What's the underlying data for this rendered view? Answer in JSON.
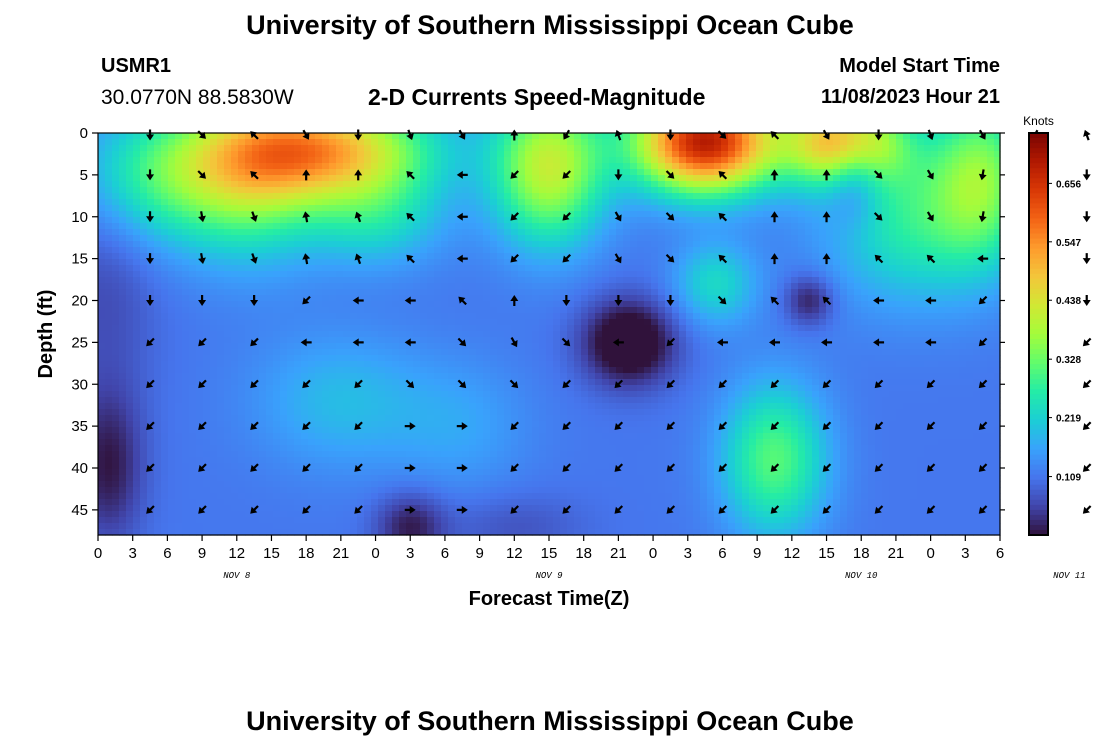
{
  "header": {
    "title": "University of Southern Mississippi Ocean Cube",
    "station_id": "USMR1",
    "station_coords": "30.0770N  88.5830W",
    "chart_title": "2-D Currents Speed-Magnitude",
    "model_start_label": "Model Start Time",
    "model_start_value": "11/08/2023 Hour 21"
  },
  "footer": {
    "title": "University of Southern Mississippi Ocean Cube"
  },
  "chart_data": {
    "type": "heatmap",
    "title": "2-D Currents Speed-Magnitude",
    "xlabel": "Forecast Time(Z)",
    "ylabel": "Depth (ft)",
    "x_tick_labels": [
      "0",
      "3",
      "6",
      "9",
      "12",
      "15",
      "18",
      "21",
      "0",
      "3",
      "6",
      "9",
      "12",
      "15",
      "18",
      "21",
      "0",
      "3",
      "6",
      "9",
      "12",
      "15",
      "18",
      "21",
      "0",
      "3",
      "6"
    ],
    "x_date_labels": [
      {
        "label": "NOV 8",
        "tick_index": 4.5
      },
      {
        "label": "NOV 9",
        "tick_index": 13.5
      },
      {
        "label": "NOV 10",
        "tick_index": 22.5
      },
      {
        "label": "NOV 11",
        "tick_index": 28.5
      }
    ],
    "y_ticks": [
      0,
      5,
      10,
      15,
      20,
      25,
      30,
      35,
      40,
      45
    ],
    "ylim": [
      48,
      0
    ],
    "colorbar": {
      "label": "Knots",
      "tick_labels": [
        "0.656",
        "0.547",
        "0.438",
        "0.328",
        "0.219",
        "0.109"
      ],
      "tick_values": [
        0.656,
        0.547,
        0.438,
        0.328,
        0.219,
        0.109
      ],
      "range": [
        0,
        0.75
      ],
      "colors": [
        "#30123b",
        "#4145ab",
        "#4675ed",
        "#39a2fc",
        "#1bcfd4",
        "#24eca6",
        "#61fc6c",
        "#a4fc3b",
        "#d1e834",
        "#f3c63a",
        "#fe9b2d",
        "#f36315",
        "#d93806",
        "#b11901",
        "#7a0402"
      ]
    },
    "speed_hotspots": [
      {
        "x": 17.5,
        "y": 1,
        "amp": 0.58,
        "sx": 2.0,
        "sy": 6
      },
      {
        "x": 21.5,
        "y": 1,
        "amp": 0.4,
        "sx": 1.6,
        "sy": 5
      },
      {
        "x": 13.0,
        "y": 4,
        "amp": 0.3,
        "sx": 1.6,
        "sy": 9
      },
      {
        "x": 6.5,
        "y": 2,
        "amp": 0.38,
        "sx": 3.0,
        "sy": 6
      },
      {
        "x": 4.5,
        "y": 5,
        "amp": 0.18,
        "sx": 2.0,
        "sy": 10
      },
      {
        "x": 2.0,
        "y": 5,
        "amp": 0.18,
        "sx": 2.5,
        "sy": 8
      },
      {
        "x": 25.5,
        "y": 5,
        "amp": 0.2,
        "sx": 1.4,
        "sy": 10
      },
      {
        "x": 23.5,
        "y": 10,
        "amp": 0.16,
        "sx": 2.5,
        "sy": 10
      },
      {
        "x": 8.0,
        "y": 10,
        "amp": 0.12,
        "sx": 2.0,
        "sy": 6
      },
      {
        "x": 17.8,
        "y": 18,
        "amp": 0.12,
        "sx": 1.2,
        "sy": 5
      },
      {
        "x": 19.5,
        "y": 39,
        "amp": 0.2,
        "sx": 1.5,
        "sy": 9
      },
      {
        "x": 7.0,
        "y": 32,
        "amp": 0.08,
        "sx": 2.5,
        "sy": 8
      },
      {
        "x": 10.5,
        "y": 35,
        "amp": 0.05,
        "sx": 2.0,
        "sy": 8
      },
      {
        "x": 0.2,
        "y": 18,
        "amp": -0.05,
        "sx": 1.5,
        "sy": 15
      },
      {
        "x": 15.3,
        "y": 25,
        "amp": -0.17,
        "sx": 1.3,
        "sy": 5
      },
      {
        "x": 21.8,
        "y": 4,
        "amp": -0.13,
        "sx": 0.8,
        "sy": 6
      },
      {
        "x": 20.5,
        "y": 20,
        "amp": -0.1,
        "sx": 0.7,
        "sy": 3
      },
      {
        "x": 28.8,
        "y": 38,
        "amp": -0.15,
        "sx": 0.9,
        "sy": 9
      },
      {
        "x": 0.3,
        "y": 40,
        "amp": -0.1,
        "sx": 1.0,
        "sy": 9
      },
      {
        "x": 9.0,
        "y": 47,
        "amp": -0.1,
        "sx": 1.0,
        "sy": 4
      },
      {
        "x": 12.0,
        "y": 47,
        "amp": -0.04,
        "sx": 2.0,
        "sy": 4
      }
    ],
    "speed_background": 0.11,
    "vectors": {
      "x_positions": [
        1.5,
        3,
        4.5,
        6,
        7.5,
        9,
        10.5,
        12,
        13.5,
        15,
        16.5,
        18,
        19.5,
        21,
        22.5,
        24,
        25.5,
        27,
        28.5,
        29
      ],
      "depths": [
        0,
        5,
        10,
        15,
        20,
        25,
        30,
        35,
        40,
        45
      ],
      "angle_rows_deg": [
        [
          270,
          315,
          135,
          300,
          270,
          290,
          300,
          90,
          240,
          110,
          270,
          315,
          135,
          300,
          270,
          290,
          300,
          240,
          110,
          240
        ],
        [
          270,
          315,
          135,
          90,
          90,
          135,
          180,
          225,
          225,
          270,
          315,
          135,
          90,
          90,
          315,
          300,
          260,
          270,
          270,
          240
        ],
        [
          270,
          280,
          290,
          100,
          110,
          135,
          180,
          225,
          225,
          300,
          315,
          135,
          90,
          90,
          315,
          300,
          260,
          270,
          270,
          240
        ],
        [
          270,
          280,
          290,
          100,
          110,
          135,
          180,
          225,
          225,
          300,
          315,
          135,
          90,
          90,
          135,
          135,
          180,
          225,
          270,
          270
        ],
        [
          270,
          270,
          270,
          225,
          180,
          180,
          135,
          90,
          270,
          270,
          270,
          315,
          135,
          135,
          180,
          180,
          225,
          225,
          270,
          270
        ],
        [
          225,
          225,
          225,
          180,
          180,
          180,
          315,
          300,
          315,
          180,
          225,
          180,
          180,
          180,
          180,
          180,
          225,
          225,
          225,
          225
        ],
        [
          225,
          225,
          225,
          225,
          225,
          315,
          315,
          315,
          225,
          225,
          225,
          225,
          225,
          225,
          225,
          225,
          225,
          225,
          225,
          225
        ],
        [
          225,
          225,
          225,
          225,
          225,
          0,
          0,
          225,
          225,
          225,
          225,
          225,
          225,
          225,
          225,
          225,
          225,
          225,
          225,
          225
        ],
        [
          225,
          225,
          225,
          225,
          225,
          0,
          0,
          225,
          225,
          225,
          225,
          225,
          225,
          225,
          225,
          225,
          225,
          225,
          225,
          225
        ],
        [
          225,
          225,
          225,
          225,
          225,
          0,
          0,
          225,
          225,
          225,
          225,
          225,
          225,
          225,
          225,
          225,
          225,
          225,
          225,
          225
        ]
      ]
    }
  }
}
